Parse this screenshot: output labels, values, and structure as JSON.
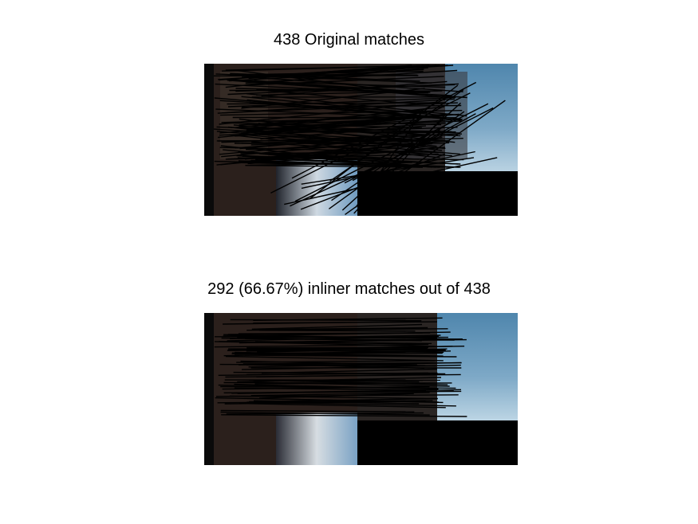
{
  "figure": {
    "panels": [
      {
        "title": "438 Original matches"
      },
      {
        "title": "292 (66.67%) inliner matches out of 438"
      }
    ]
  }
}
